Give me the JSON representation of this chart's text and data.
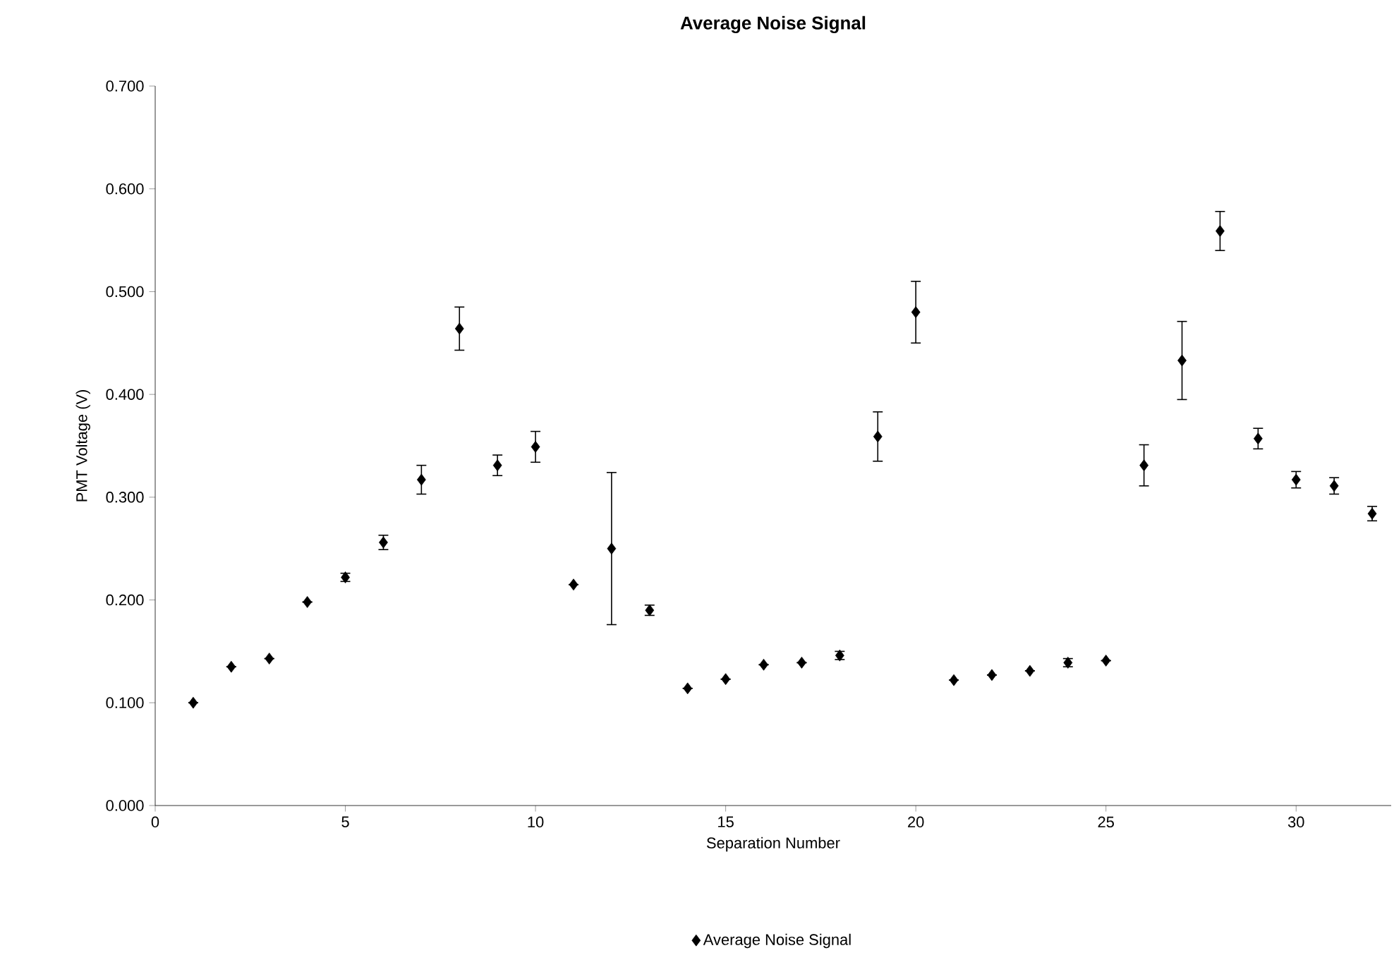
{
  "chart_data": {
    "type": "scatter",
    "title": "Average Noise Signal",
    "xlabel": "Separation Number",
    "ylabel": "PMT Voltage (V)",
    "x": [
      1,
      2,
      3,
      4,
      5,
      6,
      7,
      8,
      9,
      10,
      11,
      12,
      13,
      14,
      15,
      16,
      17,
      18,
      19,
      20,
      21,
      22,
      23,
      24,
      25,
      26,
      27,
      28,
      29,
      30,
      31,
      32
    ],
    "series": [
      {
        "name": "Average Noise Signal",
        "color": "#000000",
        "values": [
          0.1,
          0.135,
          0.143,
          0.198,
          0.222,
          0.256,
          0.317,
          0.464,
          0.331,
          0.349,
          0.215,
          0.25,
          0.19,
          0.114,
          0.123,
          0.137,
          0.139,
          0.146,
          0.359,
          0.48,
          0.122,
          0.127,
          0.131,
          0.139,
          0.141,
          0.331,
          0.433,
          0.559,
          0.357,
          0.317,
          0.311,
          0.284
        ],
        "errors": [
          null,
          null,
          null,
          null,
          0.004,
          0.007,
          0.014,
          0.021,
          0.01,
          0.015,
          null,
          0.074,
          0.005,
          null,
          null,
          null,
          null,
          0.004,
          0.024,
          0.03,
          null,
          null,
          null,
          0.004,
          null,
          0.02,
          0.038,
          0.019,
          0.01,
          0.008,
          0.008,
          0.007
        ]
      }
    ],
    "xlim": [
      0,
      32.5
    ],
    "ylim": [
      0,
      0.7
    ],
    "xticks": [
      0,
      5,
      10,
      15,
      20,
      25,
      30
    ],
    "yticks": [
      {
        "value": 0,
        "label": "0.000"
      },
      {
        "value": 0.1,
        "label": "0.100"
      },
      {
        "value": 0.2,
        "label": "0.200"
      },
      {
        "value": 0.3,
        "label": "0.300"
      },
      {
        "value": 0.4,
        "label": "0.400"
      },
      {
        "value": 0.5,
        "label": "0.500"
      },
      {
        "value": 0.6,
        "label": "0.600"
      },
      {
        "value": 0.7,
        "label": "0.700"
      }
    ],
    "marker": "diamond",
    "legend": "bottom",
    "grid": false
  }
}
